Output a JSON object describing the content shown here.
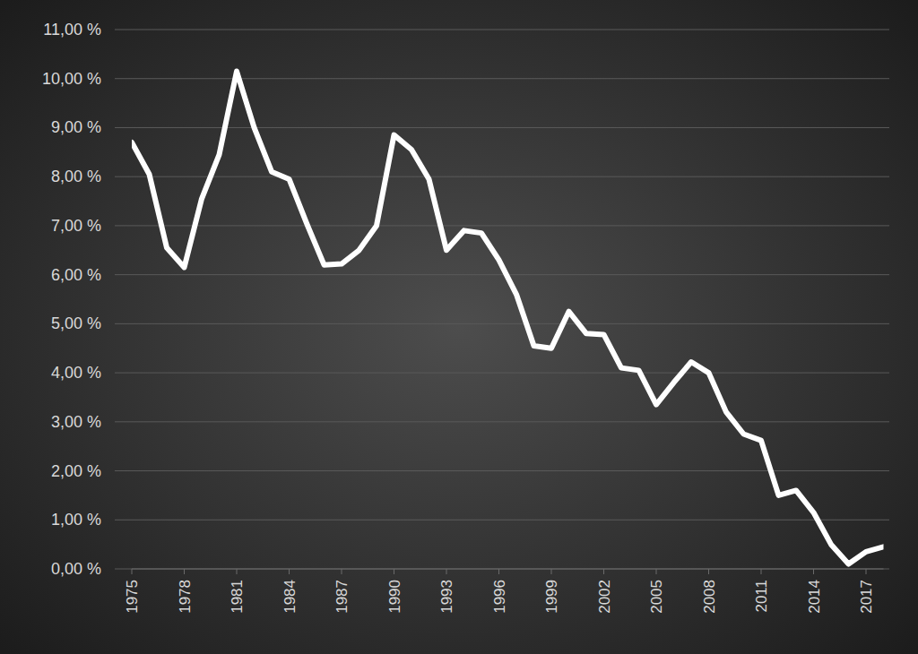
{
  "chart_data": {
    "type": "line",
    "x": [
      1975,
      1976,
      1977,
      1978,
      1979,
      1980,
      1981,
      1982,
      1983,
      1984,
      1985,
      1986,
      1987,
      1988,
      1989,
      1990,
      1991,
      1992,
      1993,
      1994,
      1995,
      1996,
      1997,
      1998,
      1999,
      2000,
      2001,
      2002,
      2003,
      2004,
      2005,
      2006,
      2007,
      2008,
      2009,
      2010,
      2011,
      2012,
      2013,
      2014,
      2015,
      2016,
      2017,
      2018
    ],
    "values": [
      8.7,
      8.05,
      6.55,
      6.15,
      7.55,
      8.45,
      10.15,
      9.0,
      8.1,
      7.95,
      7.05,
      6.2,
      6.22,
      6.5,
      7.0,
      8.85,
      8.55,
      7.95,
      6.5,
      6.9,
      6.85,
      6.3,
      5.6,
      4.55,
      4.5,
      5.25,
      4.8,
      4.78,
      4.1,
      4.05,
      3.35,
      3.8,
      4.22,
      4.0,
      3.2,
      2.75,
      2.62,
      1.5,
      1.6,
      1.15,
      0.5,
      0.1,
      0.35,
      0.45
    ],
    "color": "#ffffff",
    "xlim": [
      1975,
      2018
    ],
    "xticks": [
      1975,
      1978,
      1981,
      1984,
      1987,
      1990,
      1993,
      1996,
      1999,
      2002,
      2005,
      2008,
      2011,
      2014,
      2017
    ],
    "ylim": [
      0,
      11
    ],
    "yticks": [
      {
        "value": 0,
        "label": "0,00 %"
      },
      {
        "value": 1,
        "label": "1,00 %"
      },
      {
        "value": 2,
        "label": "2,00 %"
      },
      {
        "value": 3,
        "label": "3,00 %"
      },
      {
        "value": 4,
        "label": "4,00 %"
      },
      {
        "value": 5,
        "label": "5,00 %"
      },
      {
        "value": 6,
        "label": "6,00 %"
      },
      {
        "value": 7,
        "label": "7,00 %"
      },
      {
        "value": 8,
        "label": "8,00 %"
      },
      {
        "value": 9,
        "label": "9,00 %"
      },
      {
        "value": 10,
        "label": "10,00 %"
      },
      {
        "value": 11,
        "label": "11,00 %"
      }
    ],
    "grid": true
  }
}
